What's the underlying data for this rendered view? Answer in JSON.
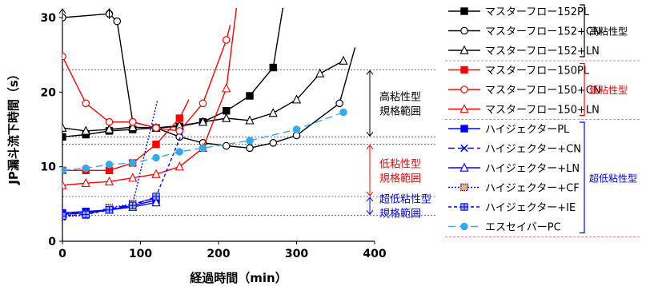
{
  "chart_data": {
    "type": "line",
    "xlabel": "経過時間（min）",
    "ylabel": "JP漏斗流下時間（s）",
    "xlim": [
      0,
      400
    ],
    "ylim": [
      0,
      30
    ],
    "x_ticks": [
      "0",
      "100",
      "200",
      "300",
      "400"
    ],
    "y_ticks": [
      "0",
      "10",
      "20",
      "30"
    ],
    "reference_lines": [
      23,
      14,
      13,
      6,
      3.5
    ],
    "range_annotations": [
      {
        "label_line1": "高粘性型",
        "label_line2": "規格範囲",
        "y_from": 14,
        "y_to": 23,
        "color": "#000000"
      },
      {
        "label_line1": "低粘性型",
        "label_line2": "規格範囲",
        "y_from": 6,
        "y_to": 13,
        "color": "#ff0000"
      },
      {
        "label_line1": "超低粘性型",
        "label_line2": "規格範囲",
        "y_from": 3.5,
        "y_to": 6,
        "color": "#0000ff"
      }
    ],
    "groups": [
      {
        "label": "高粘性型",
        "color": "#000000"
      },
      {
        "label": "低粘性型",
        "color": "#ff0000"
      },
      {
        "label": "超低粘性型",
        "color": "#0000ff"
      }
    ],
    "series": [
      {
        "name": "マスターフロー152PL",
        "color": "#000000",
        "marker": "square-filled",
        "dash": "",
        "x": [
          0,
          30,
          60,
          90,
          120,
          150,
          180,
          210,
          240,
          270
        ],
        "y": [
          14,
          14.3,
          14.8,
          15,
          15.2,
          15.4,
          16,
          17.5,
          19.5,
          23.3
        ],
        "tail": [
          285,
          33
        ]
      },
      {
        "name": "マスターフロー152+CN",
        "color": "#000000",
        "marker": "circle-open",
        "dash": "",
        "x": [
          0,
          60,
          70,
          90,
          120,
          150,
          180,
          210,
          240,
          270,
          300,
          355
        ],
        "y": [
          30,
          30.5,
          29.5,
          16,
          15.2,
          14,
          13.2,
          12.8,
          12.5,
          13.2,
          14.2,
          18.5
        ],
        "tail": [
          375,
          26
        ]
      },
      {
        "name": "マスターフロー152+LN",
        "color": "#000000",
        "marker": "triangle-open",
        "dash": "",
        "x": [
          0,
          30,
          60,
          90,
          120,
          150,
          180,
          210,
          240,
          270,
          300,
          330,
          360
        ],
        "y": [
          15.2,
          14.8,
          15,
          15.3,
          15.2,
          15.5,
          16,
          16.5,
          16.2,
          17.2,
          19,
          22.5,
          24.2
        ],
        "tail": [
          362,
          24.2
        ]
      },
      {
        "name": "マスターフロー150PL",
        "color": "#ff0000",
        "marker": "square-filled",
        "dash": "",
        "x": [
          0,
          30,
          60,
          90,
          120,
          150
        ],
        "y": [
          9.5,
          9.5,
          9.5,
          10.5,
          13,
          16.5
        ],
        "tail": [
          162,
          19
        ]
      },
      {
        "name": "マスターフロー150+CN",
        "color": "#ff0000",
        "marker": "circle-open",
        "dash": "",
        "x": [
          0,
          30,
          60,
          90,
          120,
          150,
          180,
          210
        ],
        "y": [
          24.8,
          18.5,
          16,
          16,
          15.2,
          14.8,
          18.5,
          27
        ],
        "tail": [
          215,
          29
        ]
      },
      {
        "name": "マスターフロー150+LN",
        "color": "#ff0000",
        "marker": "triangle-open",
        "dash": "",
        "x": [
          0,
          30,
          60,
          90,
          120,
          150,
          180,
          210
        ],
        "y": [
          7.5,
          7.8,
          8,
          8.5,
          9,
          10,
          12.5,
          20.5
        ],
        "tail": [
          225,
          33
        ]
      },
      {
        "name": "ハイジェクターPL",
        "color": "#0000ff",
        "marker": "square-filled",
        "dash": "",
        "x": [
          0,
          30,
          60,
          90,
          120
        ],
        "y": [
          3.8,
          4,
          4.2,
          4.8,
          5.5
        ],
        "tail": null
      },
      {
        "name": "ハイジェクター+CN",
        "color": "#0000ff",
        "marker": "x",
        "dash": "8,4",
        "x": [
          0,
          30,
          60,
          90,
          120
        ],
        "y": [
          3.7,
          3.8,
          4.3,
          5,
          5.8
        ],
        "tail": null
      },
      {
        "name": "ハイジェクター+LN",
        "color": "#0000ff",
        "marker": "triangle-open",
        "dash": "",
        "x": [
          0,
          30,
          60,
          90,
          120
        ],
        "y": [
          3.6,
          3.8,
          4.2,
          4.6,
          5.2
        ],
        "tail": null
      },
      {
        "name": "ハイジェクター+CF",
        "color": "#0000ff",
        "marker": "square-orange",
        "dash": "2,2",
        "x": [
          0,
          30,
          60,
          90
        ],
        "y": [
          3.3,
          3.5,
          4.5,
          5
        ],
        "tail": [
          122,
          19
        ]
      },
      {
        "name": "ハイジェクター+IE",
        "color": "#0000ff",
        "marker": "square-plus",
        "dash": "4,3",
        "x": [
          0,
          30,
          60,
          90,
          120
        ],
        "y": [
          3.4,
          3.6,
          4.2,
          4.8,
          6
        ],
        "tail": [
          155,
          15
        ]
      },
      {
        "name": "エスセイバーPC",
        "color": "#33aaee",
        "marker": "circle-filled",
        "dash": "9,5",
        "x": [
          0,
          30,
          60,
          90,
          120,
          150,
          180,
          240,
          300,
          360
        ],
        "y": [
          9.5,
          9.8,
          10.3,
          10.5,
          11.2,
          12,
          12.5,
          13.5,
          15,
          17.3
        ],
        "tail": null
      }
    ]
  }
}
